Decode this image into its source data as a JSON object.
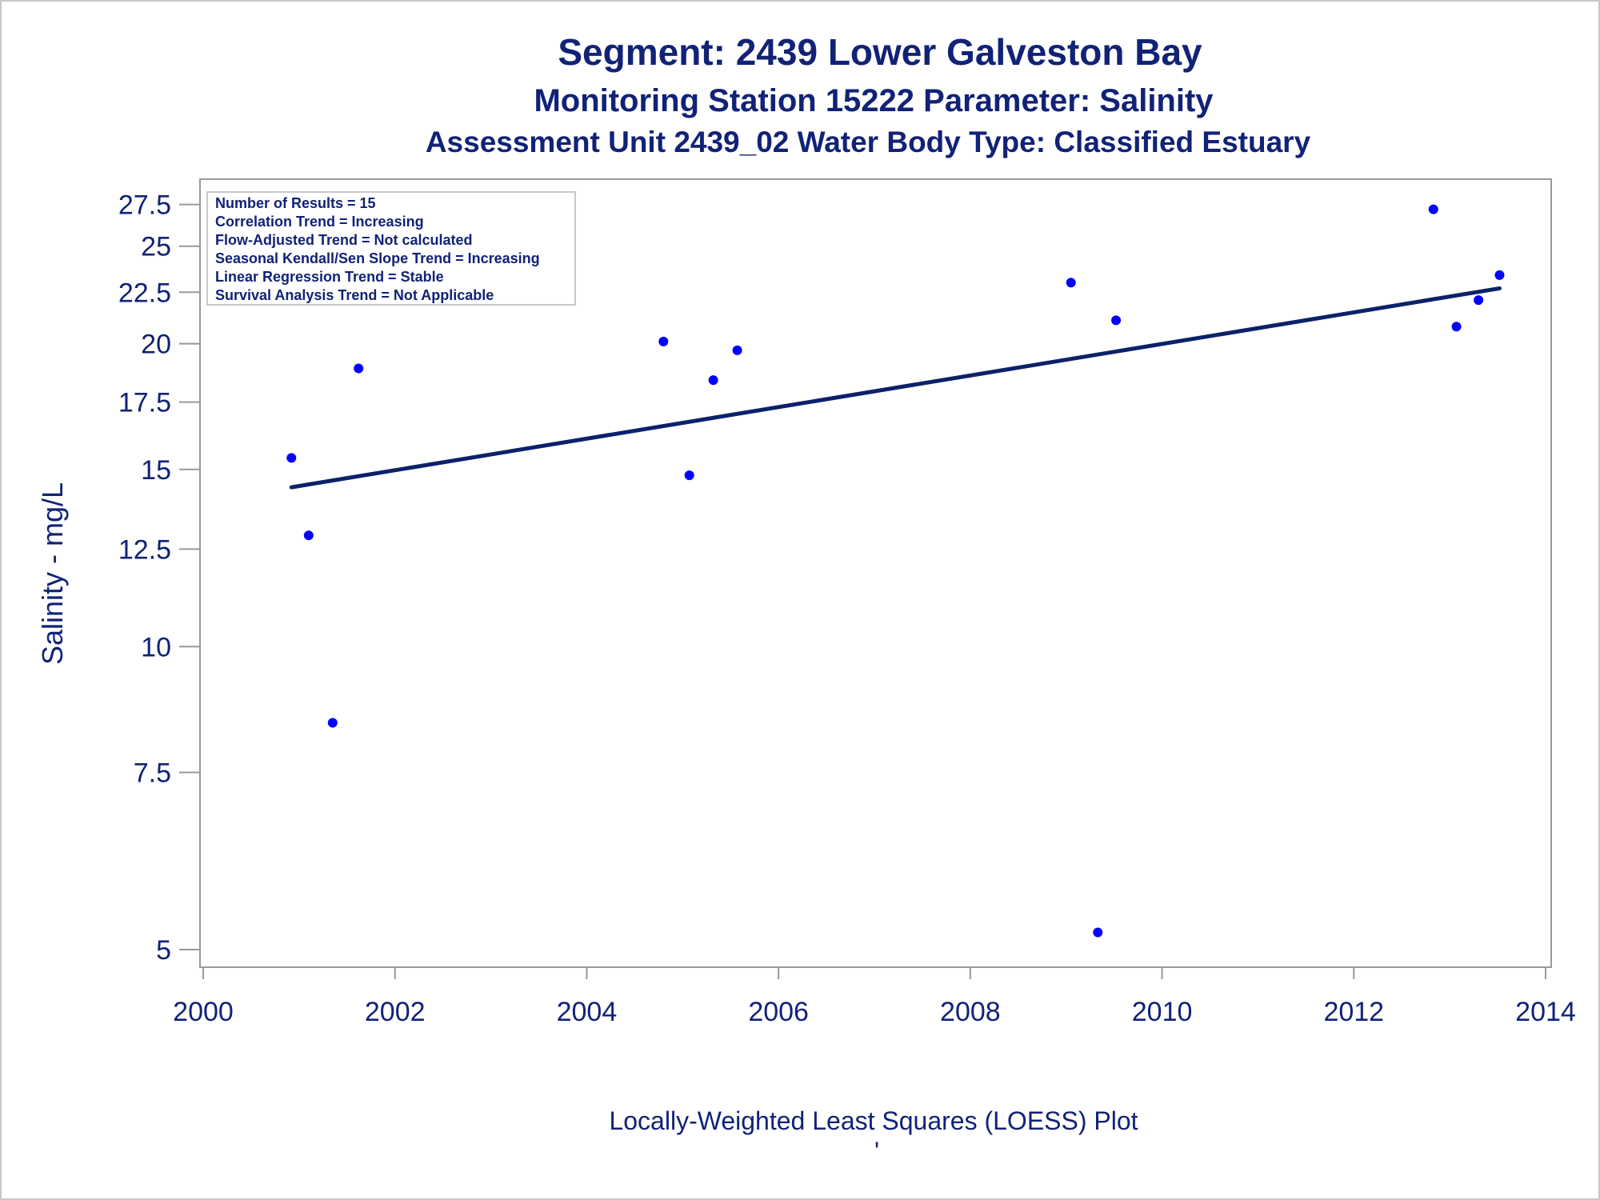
{
  "chart_data": {
    "type": "scatter",
    "title": "Segment: 2439  Lower Galveston Bay",
    "subtitle": "Monitoring Station 15222 Parameter: Salinity",
    "subtitle2": "Assessment Unit 2439_02   Water Body Type: Classified Estuary",
    "xlabel": "Locally-Weighted Least Squares (LOESS) Plot",
    "ylabel": "Salinity - mg/L",
    "footnote_mark": "'",
    "y_scale": "log",
    "xlim": [
      2000,
      2014
    ],
    "ylim": [
      4.9,
      28.3
    ],
    "x_ticks": [
      2000,
      2002,
      2004,
      2006,
      2008,
      2010,
      2012,
      2014
    ],
    "x_tick_labels": [
      "2000",
      "2002",
      "2004",
      "2006",
      "2008",
      "2010",
      "2012",
      "2014"
    ],
    "y_ticks": [
      5,
      7.5,
      10,
      12.5,
      15,
      17.5,
      20,
      22.5,
      25,
      27.5
    ],
    "y_tick_labels": [
      "5",
      "7.5",
      "10",
      "12.5",
      "15",
      "17.5",
      "20",
      "22.5",
      "25",
      "27.5"
    ],
    "points": [
      {
        "x": 2000.92,
        "y": 15.4
      },
      {
        "x": 2001.1,
        "y": 12.9
      },
      {
        "x": 2001.35,
        "y": 8.4
      },
      {
        "x": 2001.62,
        "y": 18.9
      },
      {
        "x": 2004.8,
        "y": 20.1
      },
      {
        "x": 2005.07,
        "y": 14.8
      },
      {
        "x": 2005.32,
        "y": 18.4
      },
      {
        "x": 2005.57,
        "y": 19.7
      },
      {
        "x": 2009.05,
        "y": 23.0
      },
      {
        "x": 2009.33,
        "y": 5.2
      },
      {
        "x": 2009.52,
        "y": 21.1
      },
      {
        "x": 2012.83,
        "y": 27.2
      },
      {
        "x": 2013.07,
        "y": 20.8
      },
      {
        "x": 2013.3,
        "y": 22.1
      },
      {
        "x": 2013.52,
        "y": 23.4
      }
    ],
    "trend_line": {
      "x": [
        2000.92,
        2013.52
      ],
      "y": [
        14.4,
        22.7
      ]
    },
    "inset_lines": [
      "Number of Results = 15",
      "Correlation Trend = Increasing",
      "Flow-Adjusted Trend = Not calculated",
      "Seasonal Kendall/Sen Slope Trend = Increasing",
      "Linear Regression Trend = Stable",
      "Survival Analysis Trend = Not Applicable"
    ],
    "colors": {
      "text": "#112277",
      "point": "#0000ff",
      "line": "#0c2169",
      "axis": "#999999"
    }
  }
}
